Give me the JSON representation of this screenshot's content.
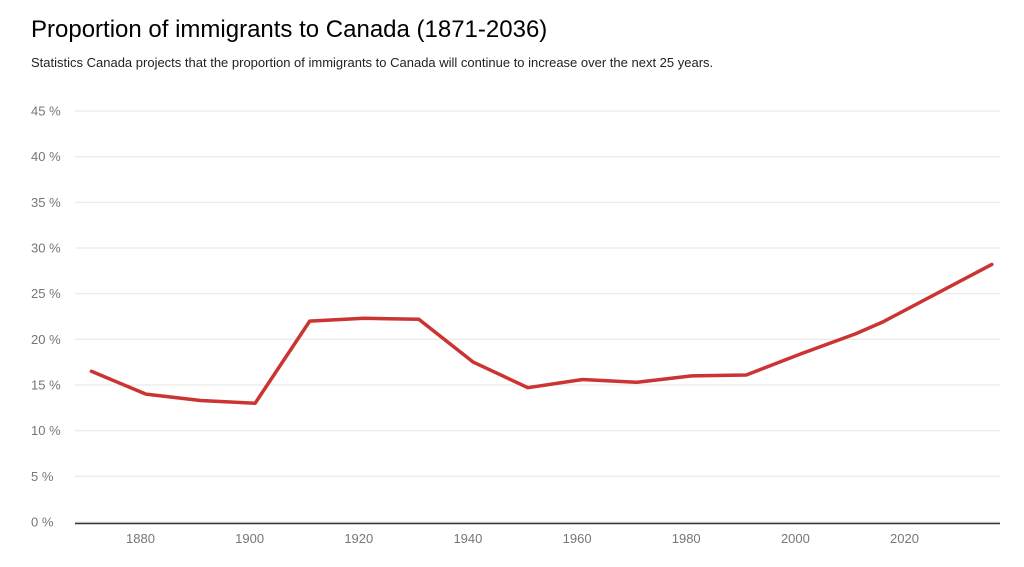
{
  "header": {
    "title": "Proportion of immigrants to Canada (1871-2036)",
    "subtitle": "Statistics Canada projects that the proportion of immigrants to Canada will continue to increase over the next 25 years."
  },
  "chart_data": {
    "type": "line",
    "title": "Proportion of immigrants to Canada (1871-2036)",
    "subtitle": "Statistics Canada projects that the proportion of immigrants to Canada will continue to increase over the next 25 years.",
    "series_name": "Proportion of immigrants to Canada (%)",
    "x": [
      1871,
      1881,
      1891,
      1901,
      1911,
      1921,
      1931,
      1941,
      1951,
      1961,
      1971,
      1981,
      1991,
      2001,
      2011,
      2016,
      2036
    ],
    "values": [
      16.5,
      14.0,
      13.3,
      13.0,
      22.0,
      22.3,
      22.2,
      17.5,
      14.7,
      15.6,
      15.3,
      16.0,
      16.1,
      18.4,
      20.6,
      21.9,
      28.2
    ],
    "xlabel": "",
    "ylabel": "",
    "xlim": [
      1868,
      2037.5
    ],
    "ylim": [
      0,
      45
    ],
    "x_ticks": [
      1880,
      1900,
      1920,
      1940,
      1960,
      1980,
      2000,
      2020
    ],
    "y_ticks": [
      0,
      5,
      10,
      15,
      20,
      25,
      30,
      35,
      40,
      45
    ],
    "y_tick_format": "{v} %",
    "grid": true,
    "legend": "none",
    "line_color": "#cc3333",
    "gridline_color": "#e4e4e4",
    "axis_line_color": "#333333",
    "tick_label_color": "#767676"
  }
}
